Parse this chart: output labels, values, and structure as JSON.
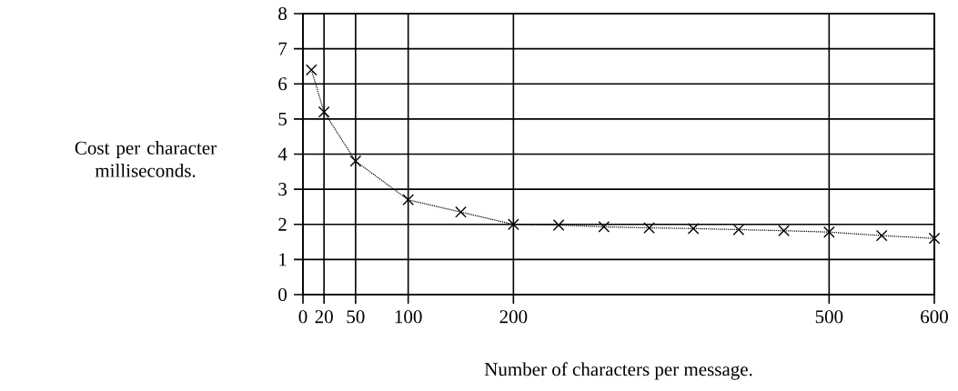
{
  "chart_data": {
    "type": "line",
    "xlabel": "Number of characters per message.",
    "ylabel": "Cost per character milliseconds.",
    "x": [
      8,
      20,
      50,
      100,
      150,
      200,
      243,
      286,
      329,
      371,
      414,
      457,
      500,
      550,
      600
    ],
    "values": [
      6.4,
      5.2,
      3.8,
      2.7,
      2.35,
      2.0,
      1.98,
      1.93,
      1.9,
      1.88,
      1.85,
      1.82,
      1.78,
      1.68,
      1.6
    ],
    "color": "#000000",
    "marker": "cross",
    "line_style": "dotted",
    "grid": true,
    "xlim": [
      0,
      600
    ],
    "ylim": [
      0,
      8
    ],
    "xticks": [
      0,
      20,
      50,
      100,
      200,
      500,
      600
    ],
    "yticks": [
      0,
      1,
      2,
      3,
      4,
      5,
      6,
      7,
      8
    ]
  }
}
